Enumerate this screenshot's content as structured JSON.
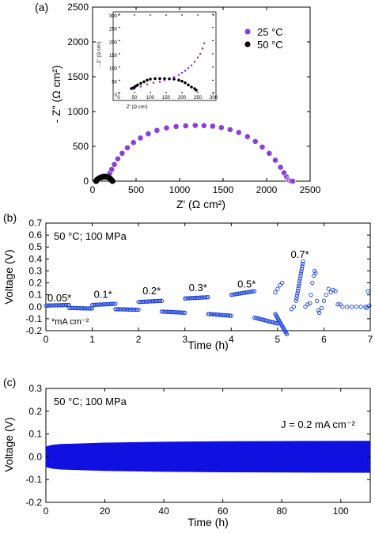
{
  "chart_data": [
    {
      "type": "scatter",
      "panel_label": "(a)",
      "xlabel": "Z' (Ω cm²)",
      "ylabel": "- Z\" (Ω cm²)",
      "xlim": [
        0,
        2500
      ],
      "ylim": [
        0,
        2500
      ],
      "xticks": [
        0,
        500,
        1000,
        1500,
        2000,
        2500
      ],
      "yticks": [
        0,
        500,
        1000,
        1500,
        2000,
        2500
      ],
      "legend_position": "top-right",
      "colors": {
        "25C": "#8b3fd9",
        "50C": "#000000"
      },
      "series": [
        {
          "name": "25 °C",
          "points": [
            [
              50,
              0
            ],
            [
              60,
              20
            ],
            [
              75,
              40
            ],
            [
              90,
              55
            ],
            [
              110,
              68
            ],
            [
              130,
              78
            ],
            [
              150,
              82
            ],
            [
              165,
              80
            ],
            [
              185,
              90
            ],
            [
              200,
              120
            ],
            [
              220,
              170
            ],
            [
              250,
              240
            ],
            [
              290,
              320
            ],
            [
              340,
              400
            ],
            [
              400,
              480
            ],
            [
              470,
              555
            ],
            [
              550,
              620
            ],
            [
              640,
              680
            ],
            [
              740,
              730
            ],
            [
              850,
              765
            ],
            [
              960,
              785
            ],
            [
              1070,
              795
            ],
            [
              1180,
              800
            ],
            [
              1280,
              798
            ],
            [
              1380,
              790
            ],
            [
              1480,
              770
            ],
            [
              1580,
              740
            ],
            [
              1680,
              700
            ],
            [
              1780,
              640
            ],
            [
              1870,
              570
            ],
            [
              1950,
              490
            ],
            [
              2030,
              400
            ],
            [
              2100,
              300
            ],
            [
              2160,
              200
            ],
            [
              2200,
              120
            ],
            [
              2230,
              60
            ],
            [
              2250,
              25
            ],
            [
              2265,
              10
            ],
            [
              2280,
              3
            ],
            [
              2300,
              0
            ]
          ]
        },
        {
          "name": "50 °C",
          "points": [
            [
              40,
              0
            ],
            [
              45,
              12
            ],
            [
              55,
              25
            ],
            [
              70,
              38
            ],
            [
              85,
              48
            ],
            [
              100,
              55
            ],
            [
              115,
              60
            ],
            [
              130,
              62
            ],
            [
              145,
              63
            ],
            [
              160,
              62
            ],
            [
              175,
              58
            ],
            [
              190,
              50
            ],
            [
              200,
              40
            ],
            [
              210,
              28
            ],
            [
              218,
              15
            ],
            [
              225,
              5
            ],
            [
              230,
              0
            ]
          ]
        }
      ],
      "inset": {
        "xlim": [
          0,
          300
        ],
        "ylim": [
          0,
          300
        ],
        "xticks": [
          0,
          50,
          100,
          150,
          200,
          250,
          300
        ],
        "yticks": [
          0,
          50,
          100,
          150,
          200,
          250,
          300
        ],
        "xlabel": "Z' (Ω cm²)",
        "ylabel": "- Z\" (Ω cm²)",
        "series": [
          {
            "name": "25 °C",
            "points": [
              [
                50,
                18
              ],
              [
                70,
                26
              ],
              [
                90,
                34
              ],
              [
                110,
                40
              ],
              [
                130,
                44
              ],
              [
                145,
                50
              ],
              [
                160,
                56
              ],
              [
                175,
                62
              ],
              [
                190,
                70
              ],
              [
                200,
                78
              ],
              [
                210,
                86
              ],
              [
                220,
                96
              ],
              [
                230,
                106
              ],
              [
                240,
                120
              ],
              [
                250,
                136
              ],
              [
                258,
                150
              ],
              [
                265,
                170
              ],
              [
                270,
                190
              ]
            ]
          },
          {
            "name": "50 °C",
            "points": [
              [
                40,
                18
              ],
              [
                45,
                20
              ],
              [
                50,
                24
              ],
              [
                55,
                28
              ],
              [
                60,
                32
              ],
              [
                70,
                38
              ],
              [
                80,
                44
              ],
              [
                90,
                50
              ],
              [
                100,
                54
              ],
              [
                115,
                56
              ],
              [
                130,
                56
              ],
              [
                145,
                56
              ],
              [
                160,
                55
              ],
              [
                175,
                54
              ],
              [
                190,
                50
              ],
              [
                200,
                46
              ],
              [
                210,
                40
              ],
              [
                220,
                32
              ],
              [
                230,
                24
              ],
              [
                240,
                18
              ],
              [
                245,
                12
              ]
            ]
          }
        ]
      }
    },
    {
      "type": "scatter",
      "panel_label": "(b)",
      "xlabel": "Time (h)",
      "ylabel": "Voltage (V)",
      "xlim": [
        0,
        7
      ],
      "ylim": [
        -0.2,
        0.7
      ],
      "xticks": [
        0,
        1,
        2,
        3,
        4,
        5,
        6,
        7
      ],
      "yticks": [
        -0.2,
        -0.1,
        0.0,
        0.1,
        0.2,
        0.3,
        0.4,
        0.5,
        0.6,
        0.7
      ],
      "color": "#1a3fd6",
      "condition": "50 °C; 100 MPa",
      "unit_note": "*mA cm⁻²",
      "annotations": [
        {
          "text": "0.05*",
          "x": 0.0,
          "y": 0.045
        },
        {
          "text": "0.1*",
          "x": 1.0,
          "y": 0.075
        },
        {
          "text": "0.2*",
          "x": 2.05,
          "y": 0.105
        },
        {
          "text": "0.3*",
          "x": 3.05,
          "y": 0.13
        },
        {
          "text": "0.5*",
          "x": 4.1,
          "y": 0.16
        },
        {
          "text": "0.7*",
          "x": 5.25,
          "y": 0.41
        }
      ],
      "segments": [
        {
          "current": 0.05,
          "pos": [
            0.0,
            0.5,
            0.01,
            0.015
          ],
          "neg": [
            0.5,
            1.0,
            -0.01,
            -0.015
          ]
        },
        {
          "current": 0.1,
          "pos": [
            1.0,
            1.5,
            0.015,
            0.025
          ],
          "neg": [
            1.5,
            2.0,
            -0.02,
            -0.025
          ]
        },
        {
          "current": 0.2,
          "pos": [
            2.0,
            2.5,
            0.04,
            0.05
          ],
          "neg": [
            2.5,
            3.0,
            -0.04,
            -0.05
          ]
        },
        {
          "current": 0.3,
          "pos": [
            3.0,
            3.5,
            0.07,
            0.08
          ],
          "neg": [
            3.5,
            4.0,
            -0.06,
            -0.075
          ]
        },
        {
          "current": 0.5,
          "pos": [
            4.0,
            4.5,
            0.1,
            0.13
          ],
          "neg": [
            4.5,
            5.0,
            -0.09,
            -0.14
          ]
        },
        {
          "current": 0.7,
          "pos": [
            5.4,
            5.55,
            0.05,
            0.38
          ],
          "neg": [
            4.95,
            5.2,
            -0.06,
            -0.23
          ]
        }
      ],
      "scattered_points": [
        [
          4.95,
          0.12
        ],
        [
          5.0,
          0.15
        ],
        [
          5.05,
          0.18
        ],
        [
          5.1,
          0.2
        ],
        [
          5.3,
          -0.02
        ],
        [
          5.35,
          0.0
        ],
        [
          5.6,
          0.0
        ],
        [
          5.65,
          0.02
        ],
        [
          5.7,
          0.03
        ],
        [
          5.72,
          0.1
        ],
        [
          5.75,
          0.2
        ],
        [
          5.78,
          0.26
        ],
        [
          5.8,
          0.3
        ],
        [
          5.82,
          0.28
        ],
        [
          5.85,
          0.05
        ],
        [
          5.88,
          -0.03
        ],
        [
          5.9,
          -0.05
        ],
        [
          5.95,
          -0.01
        ],
        [
          6.0,
          0.05
        ],
        [
          6.05,
          0.1
        ],
        [
          6.1,
          0.15
        ],
        [
          6.15,
          0.12
        ],
        [
          6.2,
          0.14
        ],
        [
          6.25,
          0.13
        ],
        [
          6.3,
          0.02
        ],
        [
          6.35,
          0.02
        ],
        [
          6.4,
          0.0
        ],
        [
          6.5,
          0.0
        ],
        [
          6.6,
          0.0
        ],
        [
          6.7,
          0.0
        ],
        [
          6.8,
          0.0
        ],
        [
          6.9,
          0.0
        ],
        [
          6.95,
          0.13
        ],
        [
          6.98,
          0.01
        ],
        [
          6.92,
          -0.01
        ]
      ]
    },
    {
      "type": "area",
      "panel_label": "(c)",
      "xlabel": "Time (h)",
      "ylabel": "Voltage (V)",
      "xlim": [
        0,
        110
      ],
      "ylim": [
        -0.2,
        0.3
      ],
      "xticks": [
        0,
        20,
        40,
        60,
        80,
        100
      ],
      "yticks": [
        -0.2,
        -0.1,
        0.0,
        0.1,
        0.2,
        0.3
      ],
      "color": "#1010e0",
      "condition": "50 °C; 100 MPa",
      "current_note": "J = 0.2 mA cm⁻²",
      "upper": [
        [
          0,
          0.045
        ],
        [
          2,
          0.052
        ],
        [
          5,
          0.056
        ],
        [
          10,
          0.058
        ],
        [
          20,
          0.062
        ],
        [
          40,
          0.066
        ],
        [
          60,
          0.068
        ],
        [
          80,
          0.069
        ],
        [
          110,
          0.07
        ]
      ],
      "lower": [
        [
          0,
          -0.045
        ],
        [
          2,
          -0.052
        ],
        [
          5,
          -0.056
        ],
        [
          10,
          -0.058
        ],
        [
          20,
          -0.062
        ],
        [
          40,
          -0.066
        ],
        [
          60,
          -0.068
        ],
        [
          80,
          -0.069
        ],
        [
          110,
          -0.07
        ]
      ]
    }
  ]
}
